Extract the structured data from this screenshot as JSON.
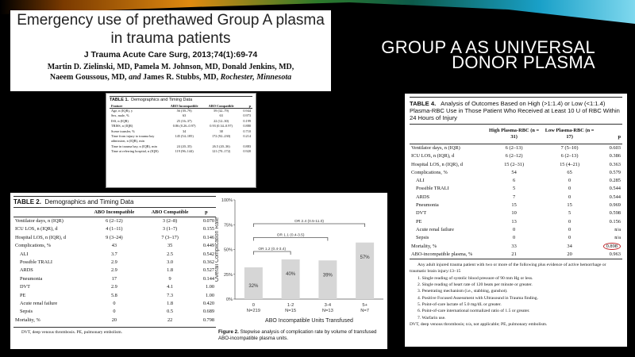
{
  "slide_heading": [
    "GROUP A AS UNIVERSAL",
    "DONOR PLASMA"
  ],
  "title_box": {
    "title_lines": [
      "Emergency use of prethawed Group A plasma",
      "in trauma patients"
    ],
    "journal": "J Trauma Acute Care Surg, 2013;74(1):69-74",
    "authors_line1": "Martin D. Zielinski, MD, Pamela M. Johnson, MD, Donald Jenkins, MD,",
    "authors_line2a": "Naeem Goussous, MD,",
    "authors_and": "and",
    "authors_line2b": "James R. Stubbs, MD,",
    "location": "Rochester, Minnesota"
  },
  "table1": {
    "label": "TABLE 1.",
    "caption": "Demographics and Timing Data",
    "headers": [
      "Feature",
      "ABO Incompatible",
      "ABO Compatible",
      "p"
    ],
    "rows": [
      [
        "Age, n (IQR), y",
        "56 (39–79)",
        "59 (32–79)",
        "0.944"
      ],
      [
        "Sex, male, %",
        "63",
        "63",
        "0.973"
      ],
      [
        "ISS, n (IQR)",
        "25 (16–37)",
        "22 (12–30)",
        "0.199"
      ],
      [
        "TRISS, n (IQR)",
        "0.86 (0.26–0.97)",
        "0.93 (0.34–0.97)",
        "0.880"
      ],
      [
        "Scene transfer, %",
        "34",
        "38",
        "0.710"
      ],
      [
        "Time from injury to trauma bay admission, n (IQR), min",
        "145 (54–185)",
        "172 (92–230)",
        "0.214"
      ],
      [
        "Time in trauma bay, n (IQR), min",
        "24 (20–35)",
        "26.5 (20–36)",
        "0.883"
      ],
      [
        "Time at referring hospital, n (IQR)",
        "119 (96–144)",
        "121 (70–172)",
        "0.920"
      ]
    ]
  },
  "table2": {
    "label": "TABLE 2.",
    "caption": "Demographics and Timing Data",
    "headers": [
      "",
      "ABO Incompatible",
      "ABO Compatible",
      "p"
    ],
    "rows": [
      [
        "Ventilator days, n (IQR)",
        "6 (2–12)",
        "3 (2–8)",
        "0.070",
        false
      ],
      [
        "ICU LOS, n (IQR), d",
        "4 (1–11)",
        "3 (1–7)",
        "0.155",
        false
      ],
      [
        "Hospital LOS, n (IQR), d",
        "9 (3–24)",
        "7 (3–17)",
        "0.146",
        false
      ],
      [
        "Complications, %",
        "43",
        "35",
        "0.449",
        false
      ],
      [
        "ALI",
        "3.7",
        "2.5",
        "0.542",
        true
      ],
      [
        "Possible TRALI",
        "2.9",
        "3.0",
        "0.362",
        true
      ],
      [
        "ARDS",
        "2.9",
        "1.8",
        "0.527",
        true
      ],
      [
        "Pneumonia",
        "17",
        "9",
        "0.144",
        true
      ],
      [
        "DVT",
        "2.9",
        "4.1",
        "1.00",
        true
      ],
      [
        "PE",
        "5.8",
        "7.3",
        "1.00",
        true
      ],
      [
        "Acute renal failure",
        "0",
        "1.8",
        "0.420",
        true
      ],
      [
        "Sepsis",
        "0",
        "0.5",
        "0.689",
        true
      ],
      [
        "Mortality, %",
        "20",
        "22",
        "0.798",
        false
      ]
    ],
    "footnote": "DVT, deep venous thrombosis. PE, pulmonary embolism."
  },
  "figure2": {
    "label": "Figure 2.",
    "caption": "Stepwise analysis of complication rate by volume of transfused ABO-incompatible plasma units."
  },
  "chart_data": {
    "type": "bar",
    "categories": [
      "0",
      "1-2",
      "3-4",
      "5+"
    ],
    "n_labels": [
      "N=219",
      "N=15",
      "N=13",
      "N=7"
    ],
    "values": [
      32,
      40,
      39,
      57
    ],
    "data_labels": [
      "32%",
      "40%",
      "39%",
      "57%"
    ],
    "ylabel": "Overall Complication Rate",
    "xlabel": "ABO Incompatible Units Transfused",
    "ylim": [
      0,
      100
    ],
    "yticks": [
      "0%",
      "25%",
      "50%",
      "75%",
      "100%"
    ],
    "annotations": [
      {
        "text": "OR 1.2 (0.4-3.4)",
        "from": "0",
        "to": "1-2"
      },
      {
        "text": "OR 1.1 (0.4-3.5)",
        "from": "0",
        "to": "3-4"
      },
      {
        "text": "OR 2.4 (0.5-11.0)",
        "from": "0",
        "to": "5+"
      }
    ],
    "bar_color": "#d6d6d6"
  },
  "table4": {
    "label": "TABLE 4.",
    "caption": "Analysis of Outcomes Based on High (>1:1.4) or Low (<1:1.4) Plasma-RBC Use in Those Patient Who Received at Least 10 U of RBC Within 24 Hours of Injury",
    "headers": [
      "",
      "High Plasma-RBC (n = 31)",
      "Low Plasma-RBC (n = 17)",
      "p"
    ],
    "rows": [
      [
        "Ventilator days, n (IQR)",
        "6 (2–13)",
        "7 (5–10)",
        "0.603",
        false
      ],
      [
        "ICU LOS, n (IQR), d",
        "6 (2–12)",
        "6 (2–13)",
        "0.386",
        false
      ],
      [
        "Hospital LOS, n (IQR), d",
        "15 (2–31)",
        "15 (4–21)",
        "0.363",
        false
      ],
      [
        "Complications, %",
        "54",
        "65",
        "0.579",
        false
      ],
      [
        "ALI",
        "6",
        "0",
        "0.285",
        true
      ],
      [
        "Possible TRALI",
        "5",
        "0",
        "0.544",
        true
      ],
      [
        "ARDS",
        "7",
        "0",
        "0.544",
        true
      ],
      [
        "Pneumonia",
        "15",
        "15",
        "0.969",
        true
      ],
      [
        "DVT",
        "10",
        "5",
        "0.598",
        true
      ],
      [
        "PE",
        "13",
        "0",
        "0.156",
        true
      ],
      [
        "Acute renal failure",
        "0",
        "0",
        "n/a",
        true
      ],
      [
        "Sepsis",
        "0",
        "0",
        "n/a",
        true
      ],
      [
        "Mortality, %",
        "33",
        "34",
        "0.898",
        false
      ],
      [
        "ABO-incompatible plasma, %",
        "21",
        "20",
        "0.963",
        false
      ]
    ],
    "highlighted_value": "0.898",
    "highlight_color": "#c0282d",
    "note_intro": "Any adult injured trauma patient with two or more of the following plus evidence of active hemorrhage or traumatic brain injury:13–15",
    "criteria": [
      "1. Single reading of systolic blood pressure of 90 mm Hg or less.",
      "2. Single reading of heart rate of 120 beats per minute or greater.",
      "3. Penetrating mechanism (i.e., stabbing, gunshot).",
      "4. Positive Focused Assessment with Ultrasound in Trauma finding.",
      "5. Point-of-care lactate of 5.0 mg/dL or greater.",
      "6. Point-of-care international normalized ratio of 1.5 or greater.",
      "7. Warfarin use."
    ],
    "footnote": "DVT, deep venous thrombosis; n/a, not applicable; PE, pulmonary embolism."
  }
}
